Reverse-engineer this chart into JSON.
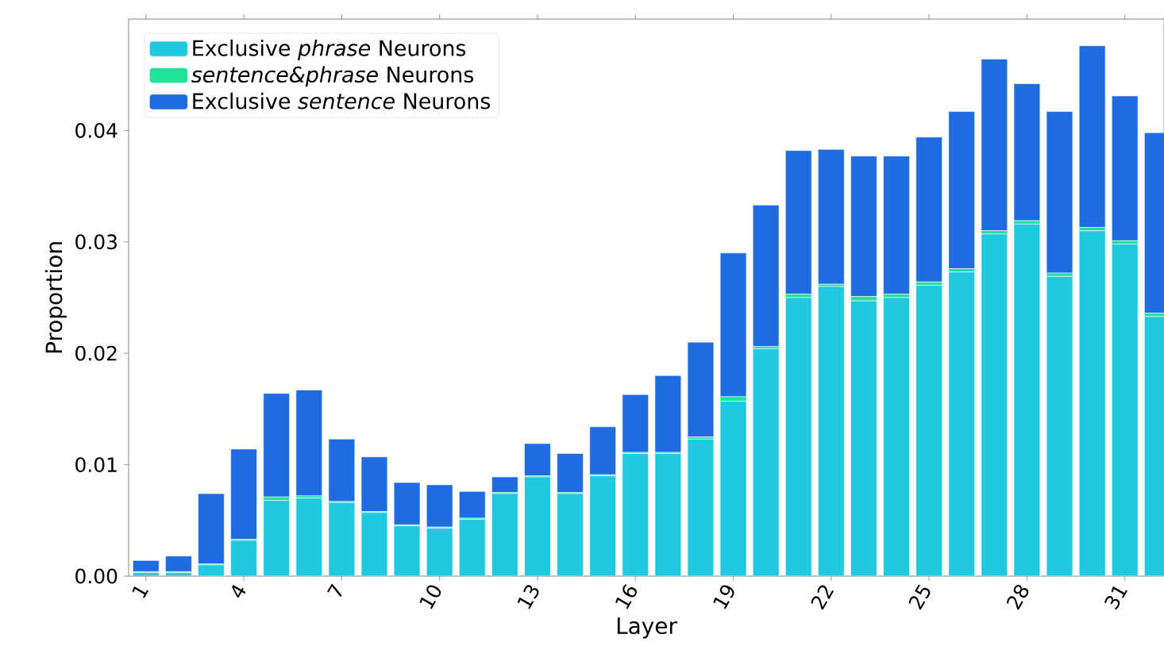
{
  "chart_data": {
    "type": "bar",
    "stacked": true,
    "xlabel": "Layer",
    "ylabel": "Proportion",
    "x": [
      1,
      2,
      3,
      4,
      5,
      6,
      7,
      8,
      9,
      10,
      11,
      12,
      13,
      14,
      15,
      16,
      17,
      18,
      19,
      20,
      21,
      22,
      23,
      24,
      25,
      26,
      27,
      28,
      29,
      30,
      31,
      32
    ],
    "series": [
      {
        "name": "Exclusive *phrase* Neurons",
        "color": "#20c9e0",
        "values": [
          0.0003,
          0.0003,
          0.001,
          0.0032,
          0.0068,
          0.007,
          0.0066,
          0.0057,
          0.0045,
          0.0043,
          0.0051,
          0.0074,
          0.0089,
          0.0074,
          0.009,
          0.011,
          0.011,
          0.0123,
          0.0157,
          0.0204,
          0.025,
          0.026,
          0.0247,
          0.025,
          0.0261,
          0.0273,
          0.0307,
          0.0316,
          0.0269,
          0.031,
          0.0298,
          0.0233
        ]
      },
      {
        "name": "*sentence&phrase* Neurons",
        "color": "#22e09a",
        "values": [
          0.0001,
          0.0001,
          0.0001,
          0.0001,
          0.0003,
          0.0002,
          0.0001,
          0.0001,
          0.0001,
          0.0001,
          0.0001,
          0.0001,
          0.0001,
          0.0001,
          0.0001,
          0.0001,
          0.0001,
          0.0002,
          0.0004,
          0.0002,
          0.0003,
          0.0002,
          0.0004,
          0.0003,
          0.0003,
          0.0003,
          0.0003,
          0.0003,
          0.0003,
          0.0003,
          0.0003,
          0.0003
        ]
      },
      {
        "name": "Exclusive *sentence* Neurons",
        "color": "#1f6be0",
        "values": [
          0.001,
          0.0014,
          0.0063,
          0.0081,
          0.0093,
          0.0095,
          0.0056,
          0.0049,
          0.0038,
          0.0038,
          0.0024,
          0.0014,
          0.0029,
          0.0035,
          0.0043,
          0.0052,
          0.0069,
          0.0085,
          0.0129,
          0.0127,
          0.0129,
          0.0121,
          0.0126,
          0.0124,
          0.013,
          0.0141,
          0.0154,
          0.0123,
          0.0145,
          0.0163,
          0.013,
          0.0162
        ]
      }
    ],
    "xlim": [
      0.47,
      32.2
    ],
    "xticks": [
      1,
      4,
      7,
      10,
      13,
      16,
      19,
      22,
      25,
      28,
      31
    ],
    "ylim": [
      0,
      0.05
    ],
    "yticks": [
      {
        "value": 0,
        "label": "0.00"
      },
      {
        "value": 0.01,
        "label": "0.01"
      },
      {
        "value": 0.02,
        "label": "0.02"
      },
      {
        "value": 0.03,
        "label": "0.03"
      },
      {
        "value": 0.04,
        "label": "0.04"
      }
    ],
    "grid": false,
    "legend": "top left"
  }
}
